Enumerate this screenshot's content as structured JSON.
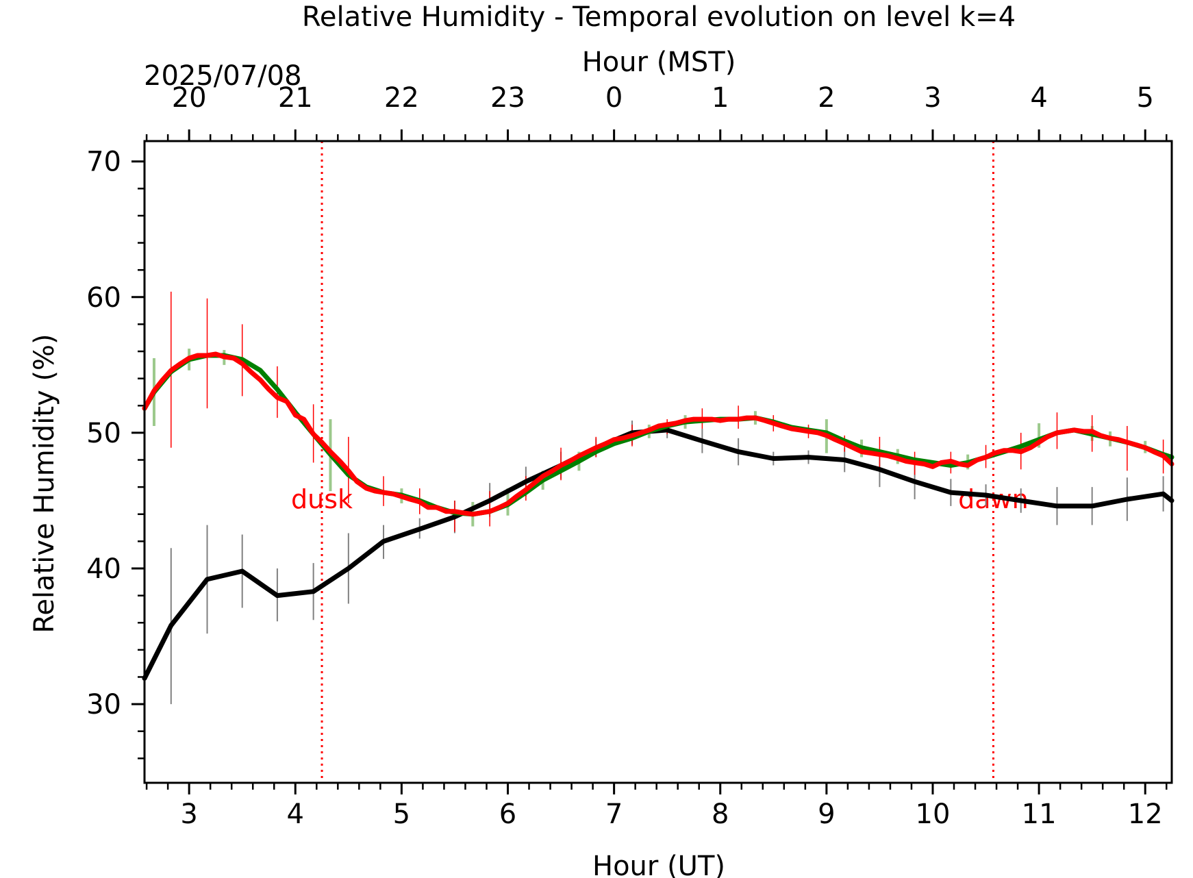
{
  "chart_data": {
    "type": "line",
    "title": "Relative Humidity - Temporal evolution on level k=4",
    "xlabel": "Hour (UT)",
    "ylabel": "Relative Humidity (%)",
    "top_xlabel": "Hour (MST)",
    "date_label": "2025/07/08",
    "xlim": [
      2.58,
      12.25
    ],
    "ylim": [
      24.2,
      71.5
    ],
    "x_ticks": [
      3,
      4,
      5,
      6,
      7,
      8,
      9,
      10,
      11,
      12
    ],
    "x_tick_labels": [
      "3",
      "4",
      "5",
      "6",
      "7",
      "8",
      "9",
      "10",
      "11",
      "12"
    ],
    "y_ticks": [
      30,
      40,
      50,
      60,
      70
    ],
    "y_tick_labels": [
      "30",
      "40",
      "50",
      "60",
      "70"
    ],
    "top_ticks_ut": [
      3,
      4,
      5,
      6,
      7,
      8,
      9,
      10,
      11,
      12
    ],
    "top_tick_labels": [
      "20",
      "21",
      "22",
      "23",
      "0",
      "1",
      "2",
      "3",
      "4",
      "5"
    ],
    "grid": false,
    "colors": {
      "black_series": "#000000",
      "black_errorbars": "#808080",
      "green_series": "#008000",
      "green_errorbars": "#9cc98c",
      "red_series": "#ff0000",
      "red_errorbars": "#ff0000",
      "event_lines": "#ff0000"
    },
    "events": [
      {
        "label": "dusk",
        "x": 4.25
      },
      {
        "label": "dawn",
        "x": 10.57
      }
    ],
    "series": [
      {
        "color": "#000000",
        "x": [
          2.58,
          2.83,
          3.17,
          3.5,
          3.83,
          4.17,
          4.5,
          4.83,
          5.17,
          5.5,
          5.83,
          6.17,
          6.5,
          6.83,
          7.17,
          7.5,
          7.83,
          8.17,
          8.5,
          8.83,
          9.17,
          9.5,
          9.83,
          10.17,
          10.5,
          10.83,
          11.17,
          11.5,
          11.83,
          12.17,
          12.25
        ],
        "values": [
          31.9,
          35.8,
          39.2,
          39.8,
          38.0,
          38.3,
          40.0,
          42.0,
          42.9,
          43.8,
          45.0,
          46.4,
          47.6,
          48.9,
          50.0,
          50.2,
          49.4,
          48.6,
          48.1,
          48.2,
          48.0,
          47.3,
          46.4,
          45.6,
          45.4,
          45.0,
          44.6,
          44.6,
          45.1,
          45.5,
          45.0
        ],
        "errorbars": [
          {
            "x": 2.83,
            "low": 30.0,
            "high": 41.5
          },
          {
            "x": 3.17,
            "low": 35.2,
            "high": 43.2
          },
          {
            "x": 3.5,
            "low": 37.1,
            "high": 42.5
          },
          {
            "x": 3.83,
            "low": 36.1,
            "high": 40.0
          },
          {
            "x": 4.17,
            "low": 36.2,
            "high": 40.4
          },
          {
            "x": 4.5,
            "low": 37.4,
            "high": 42.6
          },
          {
            "x": 4.83,
            "low": 40.7,
            "high": 43.2
          },
          {
            "x": 5.17,
            "low": 42.2,
            "high": 43.7
          },
          {
            "x": 5.5,
            "low": 42.6,
            "high": 45.0
          },
          {
            "x": 5.83,
            "low": 43.8,
            "high": 46.3
          },
          {
            "x": 6.17,
            "low": 45.3,
            "high": 47.5
          },
          {
            "x": 6.5,
            "low": 46.6,
            "high": 48.6
          },
          {
            "x": 6.83,
            "low": 48.2,
            "high": 49.6
          },
          {
            "x": 7.17,
            "low": 49.1,
            "high": 50.9
          },
          {
            "x": 7.5,
            "low": 49.6,
            "high": 50.8
          },
          {
            "x": 7.83,
            "low": 48.5,
            "high": 50.3
          },
          {
            "x": 8.17,
            "low": 47.6,
            "high": 49.6
          },
          {
            "x": 8.5,
            "low": 47.6,
            "high": 48.6
          },
          {
            "x": 8.83,
            "low": 47.7,
            "high": 48.7
          },
          {
            "x": 9.17,
            "low": 47.1,
            "high": 48.9
          },
          {
            "x": 9.5,
            "low": 46.0,
            "high": 48.6
          },
          {
            "x": 9.83,
            "low": 45.1,
            "high": 47.7
          },
          {
            "x": 10.17,
            "low": 44.6,
            "high": 46.6
          },
          {
            "x": 10.5,
            "low": 44.6,
            "high": 46.2
          },
          {
            "x": 10.83,
            "low": 44.1,
            "high": 45.9
          },
          {
            "x": 11.17,
            "low": 43.2,
            "high": 46.0
          },
          {
            "x": 11.5,
            "low": 43.2,
            "high": 46.0
          },
          {
            "x": 11.83,
            "low": 43.5,
            "high": 46.7
          },
          {
            "x": 12.17,
            "low": 44.2,
            "high": 46.8
          }
        ]
      },
      {
        "color": "#008000",
        "x": [
          2.58,
          2.67,
          2.83,
          3.0,
          3.17,
          3.33,
          3.5,
          3.67,
          3.83,
          4.0,
          4.17,
          4.33,
          4.5,
          4.67,
          4.83,
          5.0,
          5.17,
          5.33,
          5.5,
          5.67,
          5.83,
          6.0,
          6.17,
          6.33,
          6.5,
          6.67,
          6.83,
          7.0,
          7.17,
          7.33,
          7.5,
          7.67,
          7.83,
          8.0,
          8.17,
          8.33,
          8.5,
          8.67,
          8.83,
          9.0,
          9.17,
          9.33,
          9.5,
          9.67,
          9.83,
          10.0,
          10.17,
          10.33,
          10.5,
          10.67,
          10.83,
          11.0,
          11.17,
          11.33,
          11.5,
          11.67,
          11.83,
          12.0,
          12.17,
          12.25
        ],
        "values": [
          51.8,
          53.0,
          54.5,
          55.4,
          55.7,
          55.7,
          55.4,
          54.6,
          53.2,
          51.5,
          49.9,
          48.4,
          46.9,
          46.0,
          45.6,
          45.4,
          45.0,
          44.5,
          44.1,
          44.0,
          44.2,
          44.7,
          45.6,
          46.5,
          47.2,
          47.9,
          48.6,
          49.2,
          49.6,
          50.1,
          50.5,
          50.8,
          50.9,
          51.0,
          51.0,
          51.1,
          50.8,
          50.4,
          50.2,
          50.0,
          49.4,
          48.9,
          48.6,
          48.3,
          48.0,
          47.8,
          47.6,
          47.8,
          48.2,
          48.6,
          49.0,
          49.5,
          50.0,
          50.2,
          49.9,
          49.6,
          49.3,
          48.9,
          48.4,
          48.2
        ],
        "errorbars": [
          {
            "x": 2.67,
            "low": 50.5,
            "high": 55.5
          },
          {
            "x": 3.0,
            "low": 54.6,
            "high": 56.2
          },
          {
            "x": 3.33,
            "low": 55.0,
            "high": 56.1
          },
          {
            "x": 4.33,
            "low": 45.7,
            "high": 51.0
          },
          {
            "x": 5.0,
            "low": 44.8,
            "high": 45.9
          },
          {
            "x": 5.67,
            "low": 43.1,
            "high": 44.9
          },
          {
            "x": 6.0,
            "low": 43.9,
            "high": 45.9
          },
          {
            "x": 6.33,
            "low": 45.8,
            "high": 47.2
          },
          {
            "x": 6.67,
            "low": 47.2,
            "high": 48.6
          },
          {
            "x": 7.33,
            "low": 49.6,
            "high": 50.6
          },
          {
            "x": 7.67,
            "low": 50.3,
            "high": 51.3
          },
          {
            "x": 8.33,
            "low": 50.6,
            "high": 51.6
          },
          {
            "x": 9.0,
            "low": 48.5,
            "high": 51.0
          },
          {
            "x": 9.33,
            "low": 48.2,
            "high": 49.5
          },
          {
            "x": 9.67,
            "low": 47.7,
            "high": 48.8
          },
          {
            "x": 10.33,
            "low": 47.3,
            "high": 48.4
          },
          {
            "x": 11.0,
            "low": 48.9,
            "high": 50.7
          },
          {
            "x": 11.5,
            "low": 49.4,
            "high": 50.5
          },
          {
            "x": 11.67,
            "low": 49.0,
            "high": 50.1
          },
          {
            "x": 12.0,
            "low": 48.5,
            "high": 49.4
          }
        ]
      },
      {
        "color": "#ff0000",
        "x": [
          2.58,
          2.67,
          2.75,
          2.83,
          2.92,
          3.0,
          3.08,
          3.17,
          3.25,
          3.33,
          3.42,
          3.5,
          3.58,
          3.67,
          3.75,
          3.83,
          3.92,
          4.0,
          4.08,
          4.17,
          4.25,
          4.33,
          4.42,
          4.5,
          4.58,
          4.67,
          4.75,
          4.83,
          4.92,
          5.0,
          5.08,
          5.17,
          5.25,
          5.33,
          5.42,
          5.5,
          5.58,
          5.67,
          5.75,
          5.83,
          5.92,
          6.0,
          6.08,
          6.17,
          6.25,
          6.33,
          6.42,
          6.5,
          6.58,
          6.67,
          6.75,
          6.83,
          6.92,
          7.0,
          7.08,
          7.17,
          7.25,
          7.33,
          7.42,
          7.5,
          7.58,
          7.67,
          7.75,
          7.83,
          7.92,
          8.0,
          8.08,
          8.17,
          8.25,
          8.33,
          8.42,
          8.5,
          8.58,
          8.67,
          8.75,
          8.83,
          8.92,
          9.0,
          9.08,
          9.17,
          9.25,
          9.33,
          9.42,
          9.5,
          9.58,
          9.67,
          9.75,
          9.83,
          9.92,
          10.0,
          10.08,
          10.17,
          10.25,
          10.33,
          10.42,
          10.5,
          10.58,
          10.67,
          10.75,
          10.83,
          10.92,
          11.0,
          11.08,
          11.17,
          11.25,
          11.33,
          11.42,
          11.5,
          11.58,
          11.67,
          11.75,
          11.83,
          11.92,
          12.0,
          12.08,
          12.17,
          12.25
        ],
        "values": [
          51.8,
          53.1,
          53.9,
          54.6,
          55.1,
          55.5,
          55.7,
          55.7,
          55.8,
          55.6,
          55.5,
          55.1,
          54.5,
          53.9,
          53.2,
          52.6,
          52.3,
          51.3,
          51.0,
          49.9,
          49.3,
          48.6,
          47.9,
          47.2,
          46.4,
          45.9,
          45.7,
          45.6,
          45.5,
          45.3,
          45.1,
          44.9,
          44.5,
          44.5,
          44.2,
          44.2,
          44.1,
          44.0,
          44.1,
          44.2,
          44.5,
          44.8,
          45.3,
          45.8,
          46.3,
          46.8,
          47.2,
          47.6,
          47.9,
          48.3,
          48.6,
          48.9,
          49.2,
          49.5,
          49.6,
          49.8,
          50.0,
          50.2,
          50.5,
          50.6,
          50.7,
          50.9,
          51.0,
          51.0,
          51.0,
          50.9,
          51.0,
          51.0,
          51.1,
          51.1,
          50.9,
          50.7,
          50.5,
          50.3,
          50.2,
          50.1,
          50.0,
          49.8,
          49.5,
          49.2,
          48.9,
          48.6,
          48.5,
          48.4,
          48.3,
          48.1,
          47.9,
          47.8,
          47.7,
          47.5,
          47.8,
          47.9,
          47.7,
          47.6,
          48.0,
          48.2,
          48.5,
          48.7,
          48.7,
          48.6,
          48.9,
          49.3,
          49.7,
          50.0,
          50.1,
          50.2,
          50.1,
          50.1,
          49.8,
          49.6,
          49.5,
          49.3,
          49.1,
          48.9,
          48.6,
          48.3,
          47.7
        ],
        "errorbars": [
          {
            "x": 2.83,
            "low": 48.9,
            "high": 60.4
          },
          {
            "x": 3.17,
            "low": 51.8,
            "high": 59.9
          },
          {
            "x": 3.5,
            "low": 52.7,
            "high": 58.0
          },
          {
            "x": 3.83,
            "low": 51.1,
            "high": 54.9
          },
          {
            "x": 4.17,
            "low": 47.8,
            "high": 52.1
          },
          {
            "x": 4.5,
            "low": 44.8,
            "high": 49.7
          },
          {
            "x": 4.83,
            "low": 44.6,
            "high": 46.8
          },
          {
            "x": 5.17,
            "low": 44.0,
            "high": 45.9
          },
          {
            "x": 5.5,
            "low": 42.7,
            "high": 45.0
          },
          {
            "x": 5.83,
            "low": 43.1,
            "high": 45.7
          },
          {
            "x": 6.17,
            "low": 45.0,
            "high": 46.8
          },
          {
            "x": 6.5,
            "low": 46.5,
            "high": 48.9
          },
          {
            "x": 6.83,
            "low": 48.2,
            "high": 49.7
          },
          {
            "x": 7.17,
            "low": 49.0,
            "high": 50.6
          },
          {
            "x": 7.5,
            "low": 49.9,
            "high": 51.0
          },
          {
            "x": 7.83,
            "low": 50.3,
            "high": 51.8
          },
          {
            "x": 8.17,
            "low": 50.3,
            "high": 52.0
          },
          {
            "x": 8.5,
            "low": 50.1,
            "high": 51.3
          },
          {
            "x": 8.83,
            "low": 49.6,
            "high": 50.6
          },
          {
            "x": 9.17,
            "low": 48.6,
            "high": 49.8
          },
          {
            "x": 9.5,
            "low": 47.3,
            "high": 49.7
          },
          {
            "x": 9.83,
            "low": 46.9,
            "high": 48.6
          },
          {
            "x": 10.17,
            "low": 47.0,
            "high": 48.6
          },
          {
            "x": 10.5,
            "low": 47.4,
            "high": 49.1
          },
          {
            "x": 10.83,
            "low": 47.3,
            "high": 50.0
          },
          {
            "x": 11.17,
            "low": 48.8,
            "high": 51.5
          },
          {
            "x": 11.5,
            "low": 48.6,
            "high": 51.3
          },
          {
            "x": 11.83,
            "low": 47.2,
            "high": 50.5
          },
          {
            "x": 12.17,
            "low": 47.0,
            "high": 49.5
          }
        ]
      }
    ]
  }
}
